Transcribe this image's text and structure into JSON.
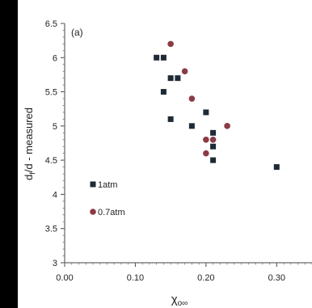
{
  "chart_data": {
    "type": "scatter",
    "panel_label": "(a)",
    "xlabel": "χ₀∞",
    "ylabel": "d_f/d - measured",
    "xlim": [
      0.0,
      0.35
    ],
    "ylim": [
      3.0,
      6.5
    ],
    "x_ticks": [
      "0.00",
      "0.10",
      "0.20",
      "0.30"
    ],
    "x_tick_values": [
      0.0,
      0.1,
      0.2,
      0.3
    ],
    "y_ticks": [
      "3",
      "3.5",
      "4",
      "4.5",
      "5",
      "5.5",
      "6",
      "6.5"
    ],
    "y_tick_values": [
      3,
      3.5,
      4,
      4.5,
      5,
      5.5,
      6,
      6.5
    ],
    "grid": false,
    "legend_position": "bottom-left",
    "series": [
      {
        "name": "1atm",
        "marker": "square",
        "color": "#1e2a36",
        "points": [
          [
            0.13,
            6.0
          ],
          [
            0.14,
            6.0
          ],
          [
            0.15,
            5.7
          ],
          [
            0.16,
            5.7
          ],
          [
            0.14,
            5.5
          ],
          [
            0.2,
            5.2
          ],
          [
            0.15,
            5.1
          ],
          [
            0.18,
            5.0
          ],
          [
            0.21,
            4.9
          ],
          [
            0.21,
            4.7
          ],
          [
            0.21,
            4.5
          ],
          [
            0.3,
            4.4
          ]
        ]
      },
      {
        "name": "0.7atm",
        "marker": "circle",
        "color": "#8b3a46",
        "points": [
          [
            0.15,
            6.2
          ],
          [
            0.17,
            5.8
          ],
          [
            0.18,
            5.4
          ],
          [
            0.23,
            5.0
          ],
          [
            0.2,
            4.8
          ],
          [
            0.21,
            4.8
          ],
          [
            0.2,
            4.6
          ]
        ]
      }
    ]
  }
}
